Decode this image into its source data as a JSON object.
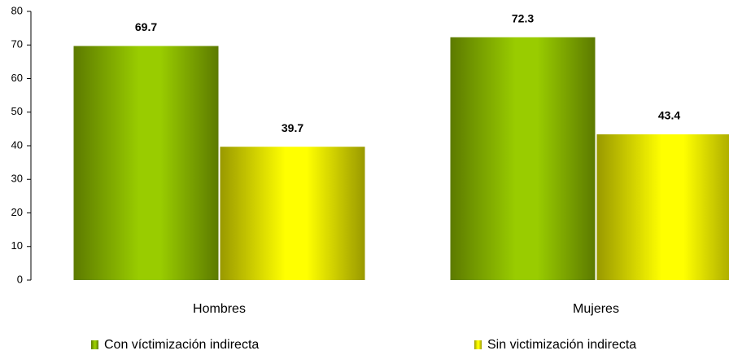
{
  "chart_data": {
    "type": "bar",
    "categories": [
      "Hombres",
      "Mujeres"
    ],
    "series": [
      {
        "name": "Con víctimización indirecta",
        "color": "#99cc00",
        "values": [
          69.7,
          72.3
        ]
      },
      {
        "name": "Sin victimización indirecta",
        "color": "#ffff00",
        "values": [
          39.7,
          43.4
        ]
      }
    ],
    "ylim": [
      0,
      80
    ],
    "yticks": [
      0,
      10,
      20,
      30,
      40,
      50,
      60,
      70,
      80
    ],
    "grid": false,
    "legend": "bottom"
  }
}
